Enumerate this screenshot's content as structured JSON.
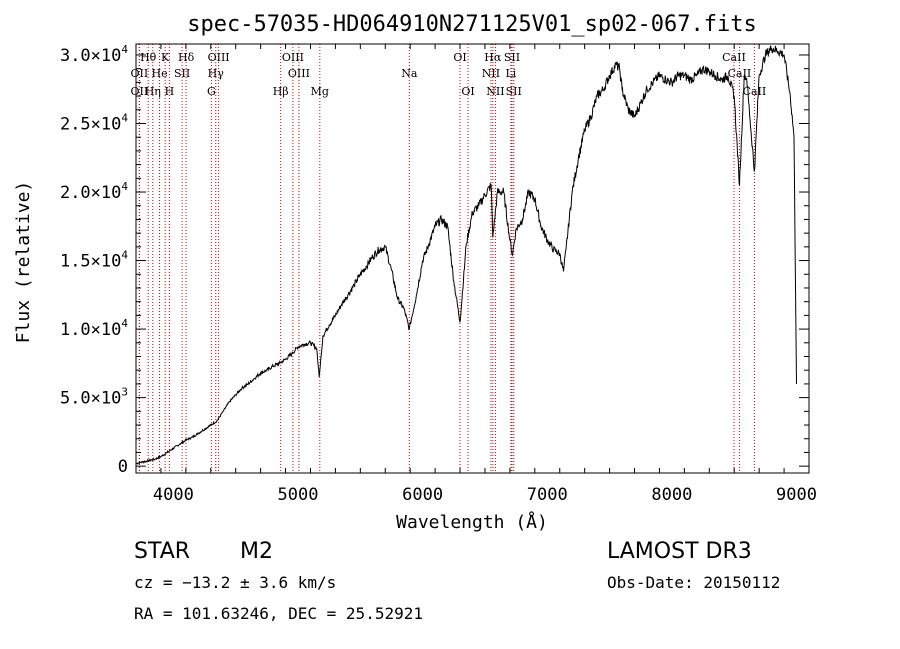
{
  "chart_data": {
    "type": "line",
    "title": "spec-57035-HD064910N271125V01_sp02-067.fits",
    "xlabel": "Wavelength (Å)",
    "ylabel": "Flux (relative)",
    "xlim": [
      3700,
      9100
    ],
    "ylim": [
      -500,
      30800
    ],
    "x_ticks": [
      {
        "value": 4000,
        "label": "4000"
      },
      {
        "value": 5000,
        "label": "5000"
      },
      {
        "value": 6000,
        "label": "6000"
      },
      {
        "value": 7000,
        "label": "7000"
      },
      {
        "value": 8000,
        "label": "8000"
      },
      {
        "value": 9000,
        "label": "9000"
      }
    ],
    "y_ticks": [
      {
        "value": 0,
        "label": "0",
        "mant": "",
        "exp": ""
      },
      {
        "value": 5000,
        "label": "",
        "mant": "5.0×10",
        "exp": "3"
      },
      {
        "value": 10000,
        "label": "",
        "mant": "1.0×10",
        "exp": "4"
      },
      {
        "value": 15000,
        "label": "",
        "mant": "1.5×10",
        "exp": "4"
      },
      {
        "value": 20000,
        "label": "",
        "mant": "2.0×10",
        "exp": "4"
      },
      {
        "value": 25000,
        "label": "",
        "mant": "2.5×10",
        "exp": "4"
      },
      {
        "value": 30000,
        "label": "",
        "mant": "3.0×10",
        "exp": "4"
      }
    ],
    "series": [
      {
        "name": "Flux",
        "color": "#000000",
        "x": [
          3700,
          3750,
          3800,
          3850,
          3900,
          3950,
          4000,
          4050,
          4100,
          4150,
          4200,
          4250,
          4300,
          4350,
          4400,
          4450,
          4500,
          4550,
          4600,
          4650,
          4700,
          4750,
          4800,
          4850,
          4900,
          4950,
          5000,
          5050,
          5100,
          5150,
          5170,
          5200,
          5250,
          5300,
          5350,
          5400,
          5450,
          5500,
          5550,
          5600,
          5650,
          5700,
          5750,
          5800,
          5850,
          5893,
          5950,
          6000,
          6050,
          6100,
          6150,
          6200,
          6250,
          6300,
          6350,
          6400,
          6450,
          6500,
          6550,
          6563,
          6600,
          6650,
          6700,
          6720,
          6750,
          6800,
          6850,
          6900,
          6950,
          7000,
          7050,
          7100,
          7130,
          7150,
          7200,
          7250,
          7300,
          7350,
          7400,
          7450,
          7500,
          7550,
          7580,
          7600,
          7650,
          7700,
          7750,
          7800,
          7850,
          7900,
          7950,
          8000,
          8050,
          8100,
          8150,
          8200,
          8250,
          8300,
          8350,
          8400,
          8450,
          8500,
          8542,
          8580,
          8600,
          8662,
          8700,
          8750,
          8800,
          8850,
          8900,
          8950,
          8980,
          9000
        ],
        "y": [
          200,
          300,
          400,
          500,
          700,
          1000,
          1300,
          1600,
          1900,
          2100,
          2400,
          2700,
          3000,
          3300,
          4000,
          4700,
          5200,
          5700,
          6000,
          6400,
          6800,
          7000,
          7300,
          7500,
          7800,
          8200,
          8700,
          8900,
          9000,
          8600,
          6500,
          9500,
          10300,
          11000,
          11800,
          12500,
          13200,
          14000,
          14600,
          15300,
          15800,
          16000,
          14300,
          12200,
          11500,
          10000,
          12500,
          15000,
          16200,
          17500,
          18000,
          17500,
          13500,
          10500,
          16200,
          18500,
          19000,
          19800,
          20500,
          16700,
          20000,
          20000,
          16500,
          15400,
          17300,
          18000,
          20000,
          19500,
          17500,
          16500,
          15800,
          15500,
          14200,
          15800,
          20000,
          22500,
          24500,
          25500,
          27000,
          27500,
          28500,
          29300,
          29000,
          27500,
          26000,
          25500,
          26500,
          27500,
          28000,
          28500,
          28200,
          28000,
          28500,
          28500,
          28200,
          28500,
          29000,
          28800,
          28500,
          28200,
          28500,
          27000,
          20500,
          28500,
          28300,
          21500,
          28500,
          30000,
          30500,
          30300,
          30000,
          27000,
          24000,
          6000
        ]
      }
    ],
    "emission_lines": [
      {
        "label": "Hθ",
        "x": 3798,
        "row": 0
      },
      {
        "label": "K",
        "x": 3934,
        "row": 0
      },
      {
        "label": "Hδ",
        "x": 4102,
        "row": 0
      },
      {
        "label": "OIII",
        "x": 4363,
        "row": 0
      },
      {
        "label": "OIII",
        "x": 4959,
        "row": 0
      },
      {
        "label": "OI",
        "x": 6300,
        "row": 0
      },
      {
        "label": "Hα",
        "x": 6563,
        "row": 0
      },
      {
        "label": "SII",
        "x": 6717,
        "row": 0
      },
      {
        "label": "CaII",
        "x": 8498,
        "row": 0
      },
      {
        "label": "OII",
        "x": 3727,
        "row": 1
      },
      {
        "label": "He",
        "x": 3889,
        "row": 1
      },
      {
        "label": "SII",
        "x": 4070,
        "row": 1
      },
      {
        "label": "Hγ",
        "x": 4340,
        "row": 1
      },
      {
        "label": "OIII",
        "x": 5007,
        "row": 1
      },
      {
        "label": "Na",
        "x": 5893,
        "row": 1
      },
      {
        "label": "NII",
        "x": 6548,
        "row": 1
      },
      {
        "label": "Li",
        "x": 6708,
        "row": 1
      },
      {
        "label": "CaII",
        "x": 8542,
        "row": 1
      },
      {
        "label": "OII",
        "x": 3727,
        "row": 2
      },
      {
        "label": "Hη",
        "x": 3835,
        "row": 2
      },
      {
        "label": "H",
        "x": 3968,
        "row": 2
      },
      {
        "label": "G",
        "x": 4305,
        "row": 2
      },
      {
        "label": "Hβ",
        "x": 4861,
        "row": 2
      },
      {
        "label": "Mg",
        "x": 5175,
        "row": 2
      },
      {
        "label": "OI",
        "x": 6364,
        "row": 2
      },
      {
        "label": "NII",
        "x": 6584,
        "row": 2
      },
      {
        "label": "SII",
        "x": 6731,
        "row": 2
      },
      {
        "label": "CaII",
        "x": 8662,
        "row": 2
      }
    ],
    "line_marker_color": "#cc0000",
    "grid": false
  },
  "info": {
    "class_label": "STAR",
    "subclass": "M2",
    "survey": "LAMOST DR3",
    "cz": "cz = −13.2 ± 3.6 km/s",
    "obs_date": "Obs-Date: 20150112",
    "coords": "RA = 101.63246, DEC =  25.52921"
  }
}
